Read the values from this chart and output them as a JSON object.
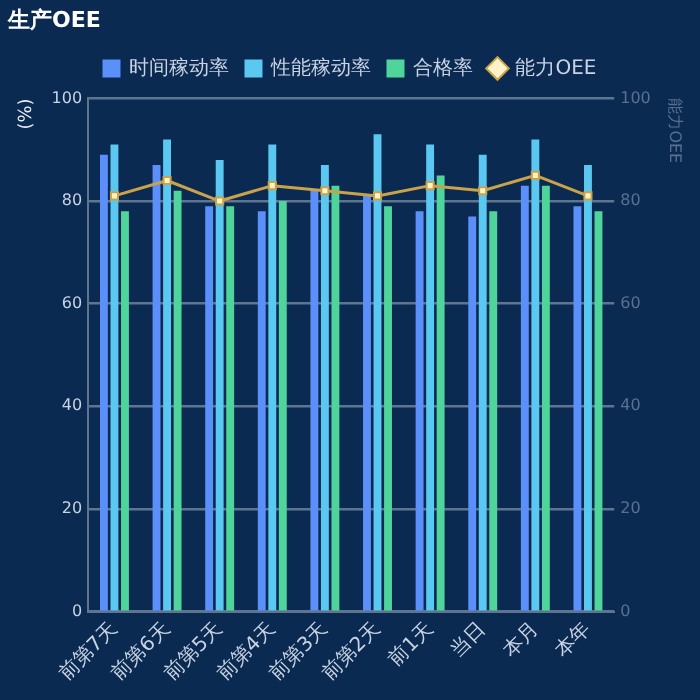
{
  "chart_data": {
    "type": "bar",
    "title": "生产OEE",
    "ylabel": "(%)",
    "y2label": "能力OEE",
    "categories": [
      "前第7天",
      "前第6天",
      "前第5天",
      "前第4天",
      "前第3天",
      "前第2天",
      "前1天",
      "当日",
      "本月",
      "本年"
    ],
    "series": [
      {
        "name": "时间稼动率",
        "color": "#5b8ff9",
        "values": [
          89,
          87,
          79,
          78,
          82,
          81,
          78,
          77,
          83,
          79
        ]
      },
      {
        "name": "性能稼动率",
        "color": "#5ac8f0",
        "values": [
          91,
          92,
          88,
          91,
          87,
          93,
          91,
          89,
          92,
          87
        ]
      },
      {
        "name": "合格率",
        "color": "#4fd59b",
        "values": [
          78,
          82,
          79,
          80,
          83,
          79,
          85,
          78,
          83,
          78
        ]
      },
      {
        "name": "能力OEE",
        "type": "line",
        "axis": "y2",
        "color": "#c9a24a",
        "values": [
          81,
          84,
          80,
          83,
          82,
          81,
          83,
          82,
          85,
          81
        ]
      }
    ],
    "ylim": [
      0,
      100
    ],
    "yticks": [
      0,
      20,
      40,
      60,
      80,
      100
    ],
    "y2lim": [
      0,
      100
    ],
    "y2ticks": [
      0,
      20,
      40,
      60,
      80,
      100
    ],
    "grid": "y",
    "legend": "top",
    "marker": "square",
    "line_style": "solid"
  }
}
